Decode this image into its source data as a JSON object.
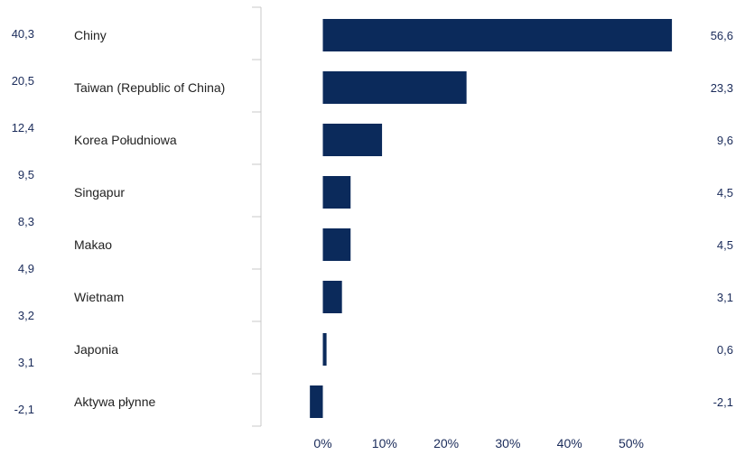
{
  "colors": {
    "bar": "#0b2a5b",
    "value_text": "#1a2b5a",
    "category_text": "#222222",
    "axis": "#c8c8c8"
  },
  "chart_data": {
    "type": "bar",
    "orientation": "horizontal",
    "categories": [
      "Chiny",
      "Taiwan (Republic of China)",
      "Korea Południowa",
      "Singapur",
      "Makao",
      "Wietnam",
      "Japonia",
      "Aktywa płynne"
    ],
    "values": [
      56.6,
      23.3,
      9.6,
      4.5,
      4.5,
      3.1,
      0.6,
      -2.1
    ],
    "value_labels": [
      "56,6",
      "23,3",
      "9,6",
      "4,5",
      "4,5",
      "3,1",
      "0,6",
      "-2,1"
    ],
    "left_column_labels": [
      "40,3",
      "20,5",
      "12,4",
      "9,5",
      "8,3",
      "4,9",
      "3,2",
      "3,1",
      "-2,1"
    ],
    "xlim": [
      -5,
      60
    ],
    "xticks": [
      "0%",
      "10%",
      "20%",
      "30%",
      "40%",
      "50%"
    ],
    "xtick_values": [
      0,
      10,
      20,
      30,
      40,
      50
    ],
    "title": "",
    "xlabel": "",
    "ylabel": "",
    "grid": false,
    "legend": "none"
  }
}
